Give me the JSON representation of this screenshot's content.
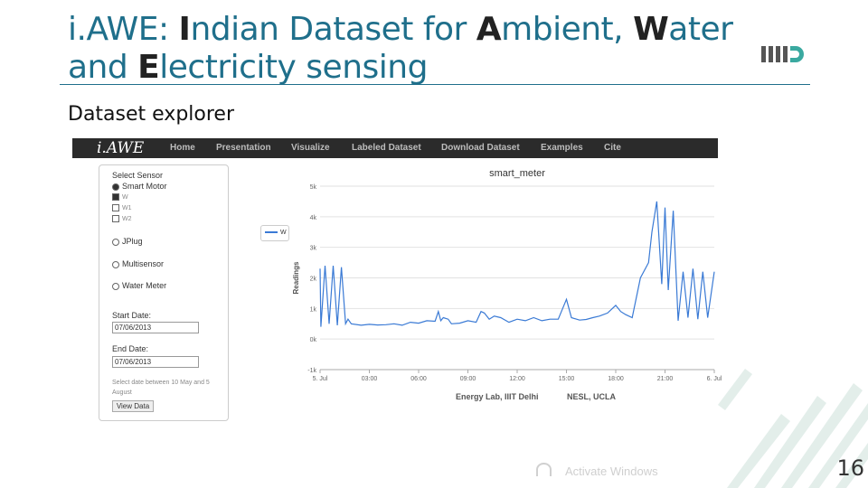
{
  "slide": {
    "title_parts": [
      {
        "text": "i.AWE: ",
        "bold": false
      },
      {
        "text": "I",
        "bold": true
      },
      {
        "text": "ndian Dataset for ",
        "bold": false
      },
      {
        "text": "A",
        "bold": true
      },
      {
        "text": "mbient, ",
        "bold": false
      },
      {
        "text": "W",
        "bold": true
      },
      {
        "text": "ater and ",
        "bold": false
      },
      {
        "text": "E",
        "bold": true
      },
      {
        "text": "lectricity sensing",
        "bold": false
      }
    ],
    "subtitle": "Dataset explorer",
    "page_number": "16",
    "watermark": "Activate Windows",
    "colors": {
      "title": "#1f6f8b",
      "accent": "#3a7ad5",
      "nav_bg": "#2b2b2b",
      "deco": "#e3eeea"
    }
  },
  "app": {
    "brand": "i.AWE",
    "nav": [
      "Home",
      "Presentation",
      "Visualize",
      "Labeled Dataset",
      "Download Dataset",
      "Examples",
      "Cite"
    ]
  },
  "panel": {
    "select_sensor": "Select Sensor",
    "smart_motor": "Smart Motor",
    "w": "W",
    "w1": "W1",
    "w2": "W2",
    "jplug": "JPlug",
    "multisensor": "Multisensor",
    "water_meter": "Water Meter",
    "start_label": "Start Date:",
    "start_value": "07/06/2013",
    "end_label": "End Date:",
    "end_value": "07/06/2013",
    "note_1": "Select date between 10 May and 5",
    "note_2": "August",
    "button": "View Data"
  },
  "chart_data": {
    "type": "line",
    "title": "smart_meter",
    "ylabel": "Readings",
    "y_tick_labels": [
      "5k",
      "4k",
      "3k",
      "2k",
      "1k",
      "0k",
      "-1k"
    ],
    "ylim": [
      -1000,
      5000
    ],
    "x_tick_labels": [
      "5. Jul",
      "03:00",
      "06:00",
      "09:00",
      "12:00",
      "15:00",
      "18:00",
      "21:00",
      "6. Jul"
    ],
    "series": [
      {
        "name": "W",
        "color": "#3a7ad5",
        "x_hours": [
          0,
          0.05,
          0.3,
          0.55,
          0.8,
          1.05,
          1.3,
          1.55,
          1.7,
          1.9,
          2.5,
          3,
          3.5,
          4,
          4.5,
          5,
          5.5,
          6,
          6.5,
          7,
          7.2,
          7.35,
          7.5,
          7.8,
          8,
          8.5,
          9,
          9.5,
          9.8,
          10,
          10.3,
          10.6,
          11,
          11.5,
          12,
          12.5,
          13,
          13.5,
          14,
          14.5,
          15,
          15.3,
          15.8,
          16.2,
          16.6,
          17,
          17.5,
          18,
          18.3,
          18.6,
          19,
          19.5,
          20,
          20.2,
          20.5,
          20.8,
          21,
          21.2,
          21.5,
          21.8,
          22.1,
          22.4,
          22.7,
          23,
          23.3,
          23.6,
          24
        ],
        "values": [
          2300,
          400,
          2400,
          500,
          2400,
          450,
          2350,
          500,
          650,
          500,
          450,
          480,
          460,
          470,
          500,
          450,
          550,
          520,
          600,
          580,
          900,
          600,
          700,
          650,
          500,
          520,
          600,
          550,
          900,
          850,
          650,
          750,
          700,
          550,
          650,
          600,
          700,
          600,
          650,
          650,
          1300,
          700,
          620,
          640,
          700,
          750,
          850,
          1100,
          900,
          800,
          700,
          2000,
          2500,
          3500,
          4500,
          1800,
          4300,
          1600,
          4200,
          600,
          2200,
          700,
          2300,
          650,
          2200,
          700,
          2200
        ]
      }
    ]
  },
  "footer": {
    "left": "Energy Lab, IIIT Delhi",
    "right": "NESL, UCLA"
  }
}
